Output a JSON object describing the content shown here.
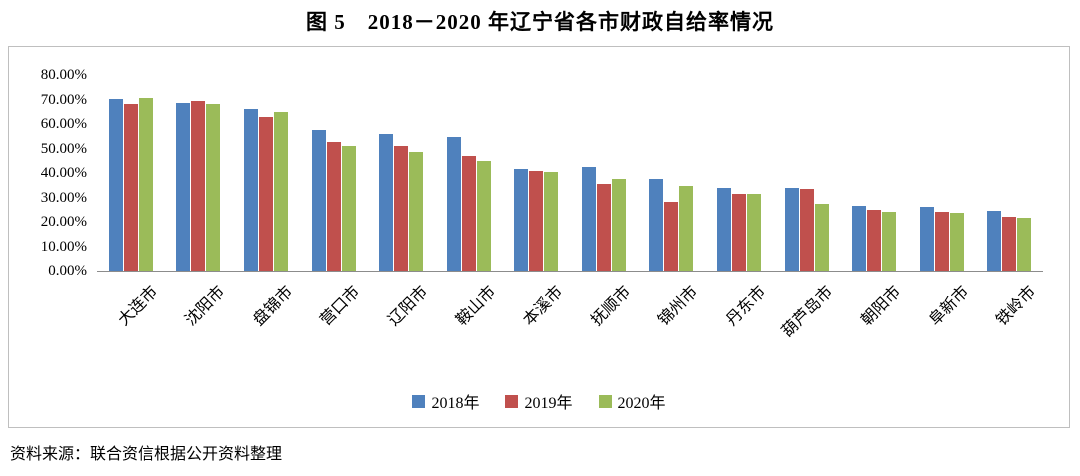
{
  "title": "图 5　2018－2020 年辽宁省各市财政自给率情况",
  "source_note": "资料来源：联合资信根据公开资料整理",
  "chart_data": {
    "type": "bar",
    "title": "图 5　2018－2020 年辽宁省各市财政自给率情况",
    "categories": [
      "大连市",
      "沈阳市",
      "盘锦市",
      "营口市",
      "辽阳市",
      "鞍山市",
      "本溪市",
      "抚顺市",
      "锦州市",
      "丹东市",
      "葫芦岛市",
      "朝阳市",
      "阜新市",
      "铁岭市"
    ],
    "series": [
      {
        "name": "2018年",
        "color": "#4F81BD",
        "values": [
          70.0,
          68.5,
          66.0,
          57.5,
          56.0,
          54.5,
          41.5,
          42.5,
          37.5,
          34.0,
          34.0,
          26.5,
          26.0,
          24.5
        ]
      },
      {
        "name": "2019年",
        "color": "#C0504D",
        "values": [
          68.0,
          69.5,
          63.0,
          52.5,
          51.0,
          47.0,
          41.0,
          35.5,
          28.0,
          31.5,
          33.5,
          25.0,
          24.0,
          22.0
        ]
      },
      {
        "name": "2020年",
        "color": "#9BBB59",
        "values": [
          70.5,
          68.0,
          65.0,
          51.0,
          48.5,
          45.0,
          40.5,
          37.5,
          34.5,
          31.5,
          27.5,
          24.0,
          23.5,
          21.5
        ]
      }
    ],
    "ylabel": "",
    "xlabel": "",
    "ylim": [
      0,
      80
    ],
    "ytick_step": 10,
    "yticks": [
      "0.00%",
      "10.00%",
      "20.00%",
      "30.00%",
      "40.00%",
      "50.00%",
      "60.00%",
      "70.00%",
      "80.00%"
    ],
    "legend_position": "bottom",
    "grid": false
  }
}
